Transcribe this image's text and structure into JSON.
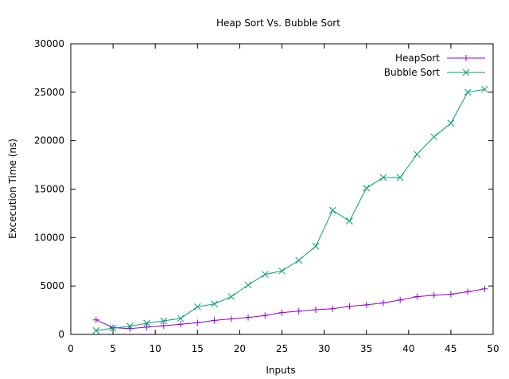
{
  "chart_data": {
    "type": "line",
    "title": "Heap Sort Vs. Bubble Sort",
    "xlabel": "Inputs",
    "ylabel": "Excecution Time (ns)",
    "xlim": [
      0,
      50
    ],
    "ylim": [
      0,
      30000
    ],
    "xticks": [
      0,
      5,
      10,
      15,
      20,
      25,
      30,
      35,
      40,
      45,
      50
    ],
    "yticks": [
      0,
      5000,
      10000,
      15000,
      20000,
      25000,
      30000
    ],
    "grid": false,
    "legend_position": "top-right",
    "series": [
      {
        "name": "HeapSort",
        "color": "#9400d3",
        "marker": "plus",
        "x": [
          3,
          5,
          7,
          9,
          11,
          13,
          15,
          17,
          19,
          21,
          23,
          25,
          27,
          29,
          31,
          33,
          35,
          37,
          39,
          41,
          43,
          45,
          47,
          49
        ],
        "y": [
          1500,
          700,
          600,
          750,
          900,
          1050,
          1200,
          1450,
          1600,
          1750,
          1950,
          2250,
          2400,
          2550,
          2650,
          2900,
          3050,
          3250,
          3550,
          3900,
          4050,
          4150,
          4400,
          4700
        ]
      },
      {
        "name": "Bubble Sort",
        "color": "#009e73",
        "marker": "cross",
        "x": [
          3,
          5,
          7,
          9,
          11,
          13,
          15,
          17,
          19,
          21,
          23,
          25,
          27,
          29,
          31,
          33,
          35,
          37,
          39,
          41,
          43,
          45,
          47,
          49
        ],
        "y": [
          400,
          650,
          850,
          1150,
          1400,
          1650,
          2850,
          3150,
          3900,
          5100,
          6200,
          6550,
          7650,
          9100,
          12800,
          11700,
          15100,
          16200,
          16200,
          18600,
          20400,
          21800,
          25000,
          25300
        ]
      }
    ]
  }
}
